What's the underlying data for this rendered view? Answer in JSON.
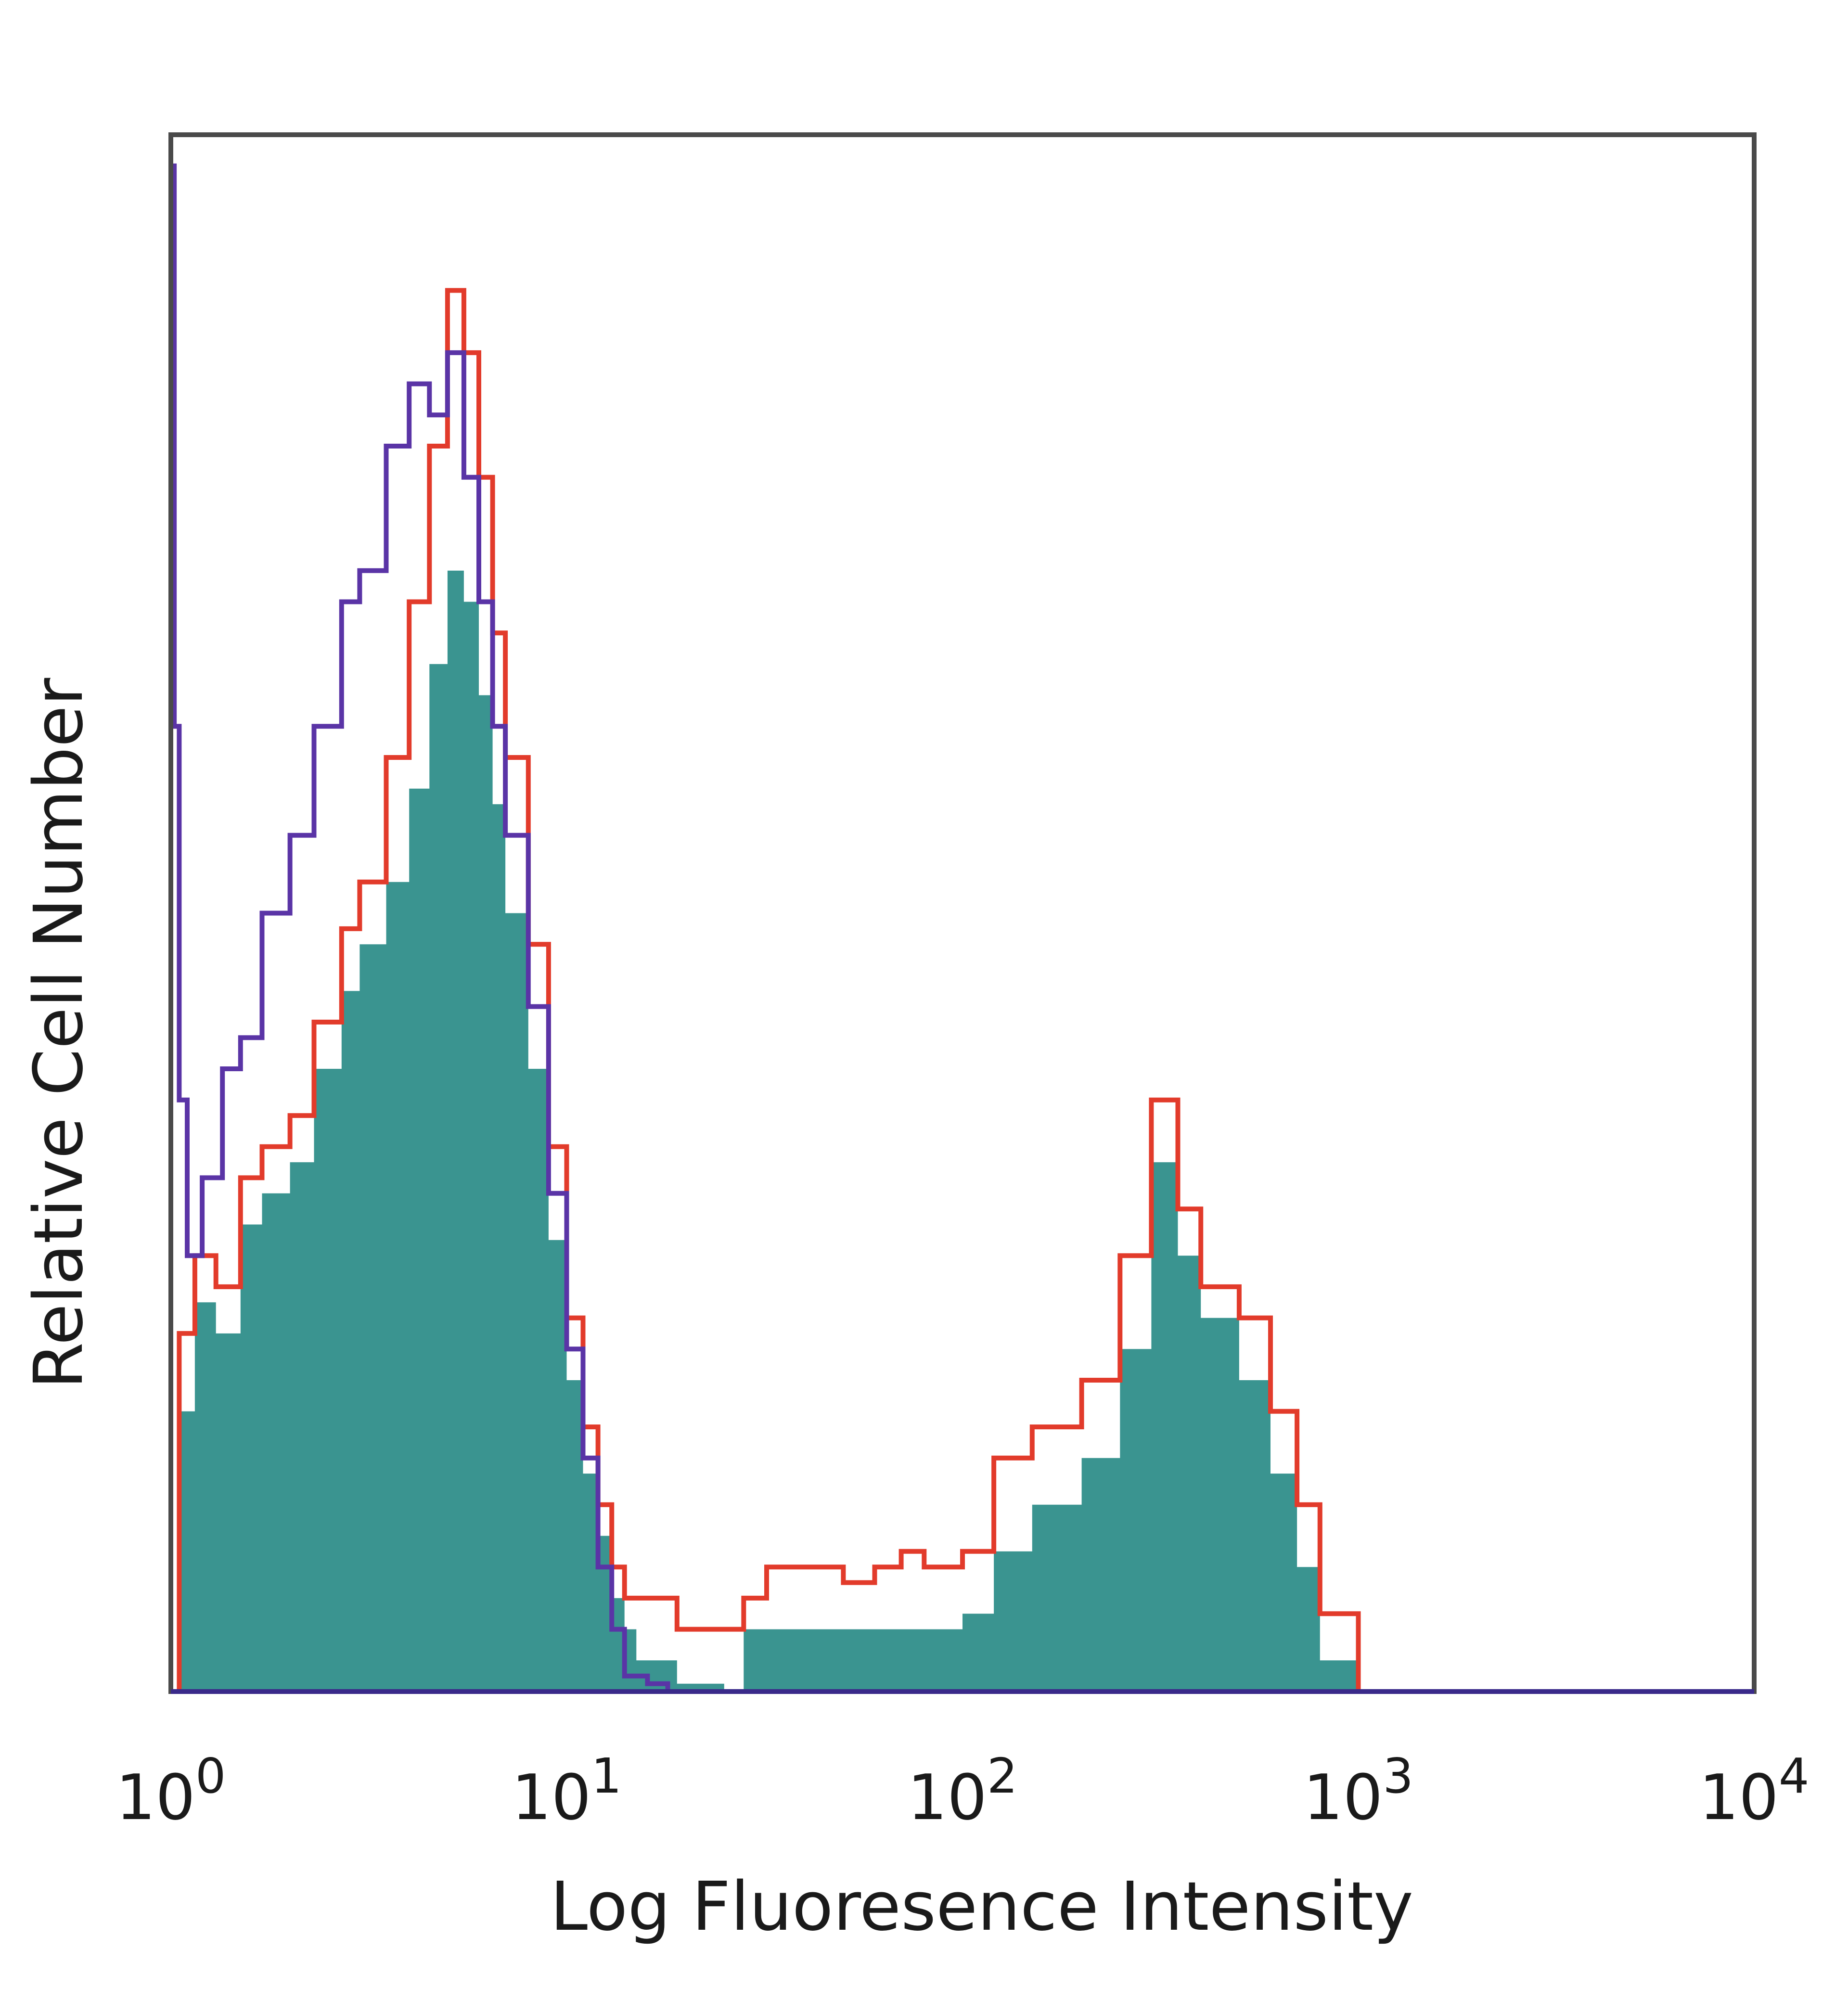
{
  "chart_data": {
    "type": "area",
    "title": "",
    "xlabel": "Log Fluoresence Intensity",
    "ylabel": "Relative Cell Number",
    "xscale": "log",
    "xlim": [
      1,
      10000
    ],
    "ylim": [
      0,
      100
    ],
    "grid": false,
    "legend": "none",
    "x_ticks": [
      {
        "value": 1,
        "base": "10",
        "exp": "0"
      },
      {
        "value": 10,
        "base": "10",
        "exp": "1"
      },
      {
        "value": 100,
        "base": "10",
        "exp": "2"
      },
      {
        "value": 1000,
        "base": "10",
        "exp": "3"
      },
      {
        "value": 10000,
        "base": "10",
        "exp": "4"
      }
    ],
    "colors": {
      "filled": "#3a9490",
      "red": "#e23b2b",
      "purple": "#5a34a6",
      "frame": "#4a4a4a"
    },
    "series": [
      {
        "style": "filled",
        "color": "#3a9490",
        "x": [
          1,
          1.05,
          1.15,
          1.3,
          1.5,
          1.7,
          2,
          2.3,
          2.7,
          3,
          3.5,
          4,
          4.5,
          5,
          5.5,
          6,
          6.5,
          7,
          8,
          9,
          10,
          11,
          12,
          13,
          14,
          15,
          17,
          19,
          22,
          25,
          28,
          32,
          40,
          50,
          60,
          70,
          80,
          90,
          100,
          120,
          150,
          200,
          250,
          300,
          350,
          400,
          500,
          600,
          700,
          800,
          1000
        ],
        "y": [
          0,
          18,
          25,
          23,
          30,
          32,
          34,
          40,
          45,
          48,
          52,
          58,
          66,
          72,
          70,
          64,
          57,
          50,
          40,
          29,
          20,
          14,
          10,
          6,
          4,
          2,
          2,
          0.5,
          0.5,
          0,
          4,
          4,
          4,
          4,
          4,
          4,
          4,
          4,
          5,
          9,
          12,
          15,
          22,
          34,
          28,
          24,
          20,
          14,
          8,
          2,
          0
        ]
      },
      {
        "style": "line",
        "color": "#e23b2b",
        "x": [
          1,
          1.05,
          1.15,
          1.3,
          1.5,
          1.7,
          2,
          2.3,
          2.7,
          3,
          3.5,
          4,
          4.5,
          5,
          5.5,
          6,
          6.5,
          7,
          8,
          9,
          10,
          11,
          12,
          13,
          14,
          15,
          17,
          19,
          22,
          25,
          28,
          32,
          40,
          50,
          60,
          70,
          80,
          90,
          100,
          120,
          150,
          200,
          250,
          300,
          350,
          400,
          500,
          600,
          700,
          800,
          1000
        ],
        "y": [
          0,
          23,
          28,
          26,
          33,
          35,
          37,
          43,
          49,
          52,
          60,
          70,
          80,
          90,
          86,
          78,
          68,
          60,
          48,
          35,
          24,
          17,
          12,
          8,
          6,
          6,
          6,
          4,
          4,
          4,
          6,
          8,
          8,
          7,
          8,
          9,
          8,
          8,
          9,
          15,
          17,
          20,
          28,
          38,
          31,
          26,
          24,
          18,
          12,
          5,
          0
        ]
      },
      {
        "style": "line",
        "color": "#5a34a6",
        "x": [
          1,
          1.02,
          1.05,
          1.1,
          1.2,
          1.35,
          1.5,
          1.7,
          2,
          2.3,
          2.7,
          3,
          3.5,
          4,
          4.5,
          5,
          5.5,
          6,
          6.5,
          7,
          8,
          9,
          10,
          11,
          12,
          13,
          14,
          16,
          18,
          20,
          1000,
          10000
        ],
        "y": [
          98,
          62,
          38,
          28,
          33,
          40,
          42,
          50,
          55,
          62,
          70,
          72,
          80,
          84,
          82,
          86,
          78,
          70,
          62,
          55,
          44,
          32,
          22,
          15,
          8,
          4,
          1,
          0.5,
          0,
          0,
          0,
          0
        ]
      }
    ]
  }
}
